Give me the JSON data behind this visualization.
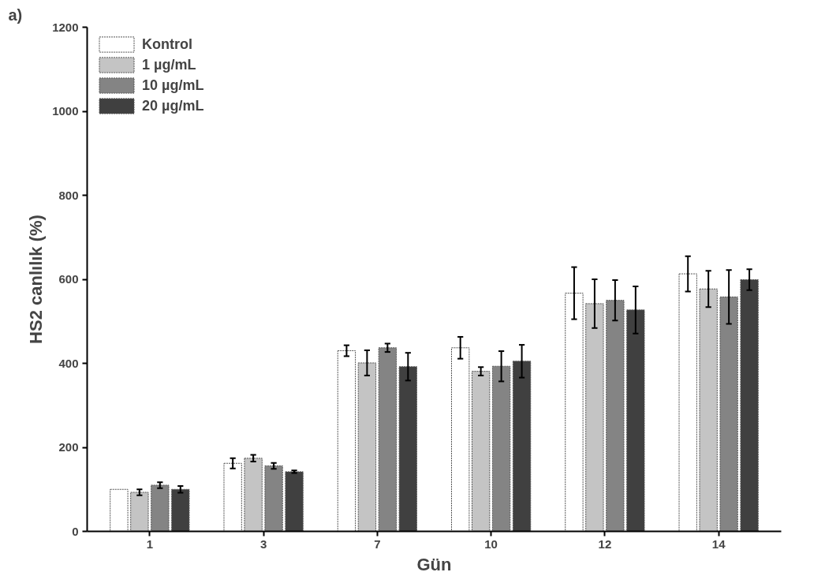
{
  "chart_data": {
    "type": "bar",
    "xlabel": "Gün",
    "ylabel": "HS2 canlılık (%)",
    "annotations": [
      "a)"
    ],
    "categories": [
      "1",
      "3",
      "7",
      "10",
      "12",
      "14"
    ],
    "series": [
      {
        "name": "Kontrol",
        "color": "#ffffff",
        "values": [
          100,
          162,
          430,
          437,
          567,
          613
        ],
        "errors": [
          null,
          12,
          13,
          26,
          62,
          42
        ]
      },
      {
        "name": "1 µg/mL",
        "color": "#c4c4c4",
        "values": [
          93,
          174,
          401,
          381,
          542,
          577
        ],
        "errors": [
          7,
          8,
          30,
          10,
          58,
          43
        ]
      },
      {
        "name": "10 µg/mL",
        "color": "#848484",
        "values": [
          110,
          156,
          437,
          393,
          550,
          558
        ],
        "errors": [
          7,
          7,
          10,
          36,
          48,
          64
        ]
      },
      {
        "name": "20 µg/mL",
        "color": "#404040",
        "values": [
          100,
          142,
          392,
          405,
          527,
          599
        ],
        "errors": [
          8,
          3,
          33,
          39,
          56,
          25
        ]
      }
    ],
    "ylim": [
      0,
      1200
    ],
    "yticks": [
      0,
      200,
      400,
      600,
      800,
      1000,
      1200
    ],
    "grid": false,
    "legend": "top left"
  }
}
